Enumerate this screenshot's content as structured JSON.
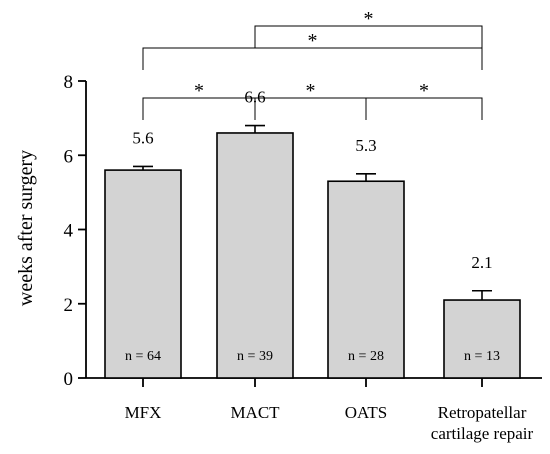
{
  "chart_data": {
    "type": "bar",
    "categories": [
      "MFX",
      "MACT",
      "OATS",
      "Retropatellar cartilage repair"
    ],
    "category_lines": [
      [
        "MFX"
      ],
      [
        "MACT"
      ],
      [
        "OATS"
      ],
      [
        "Retropatellar",
        "cartilage repair"
      ]
    ],
    "values": [
      5.6,
      6.6,
      5.3,
      2.1
    ],
    "value_labels": [
      "5.6",
      "6.6",
      "5.3",
      "2.1"
    ],
    "error_upper": [
      5.7,
      6.8,
      5.5,
      2.35
    ],
    "n_labels": [
      "n = 64",
      "n = 39",
      "n = 28",
      "n = 13"
    ],
    "ylabel": "weeks after surgery",
    "xlabel": "",
    "ylim": [
      0,
      8
    ],
    "yticks": [
      0,
      2,
      4,
      6,
      8
    ],
    "grid": false,
    "bar_color": "#d3d3d3",
    "significance": [
      {
        "from": 0,
        "to": 1,
        "label": "*"
      },
      {
        "from": 1,
        "to": 2,
        "label": "*"
      },
      {
        "from": 2,
        "to": 3,
        "label": "*"
      },
      {
        "from": 0,
        "to": 3,
        "label": "*"
      },
      {
        "from": 1,
        "to": 3,
        "label": "*"
      }
    ]
  }
}
